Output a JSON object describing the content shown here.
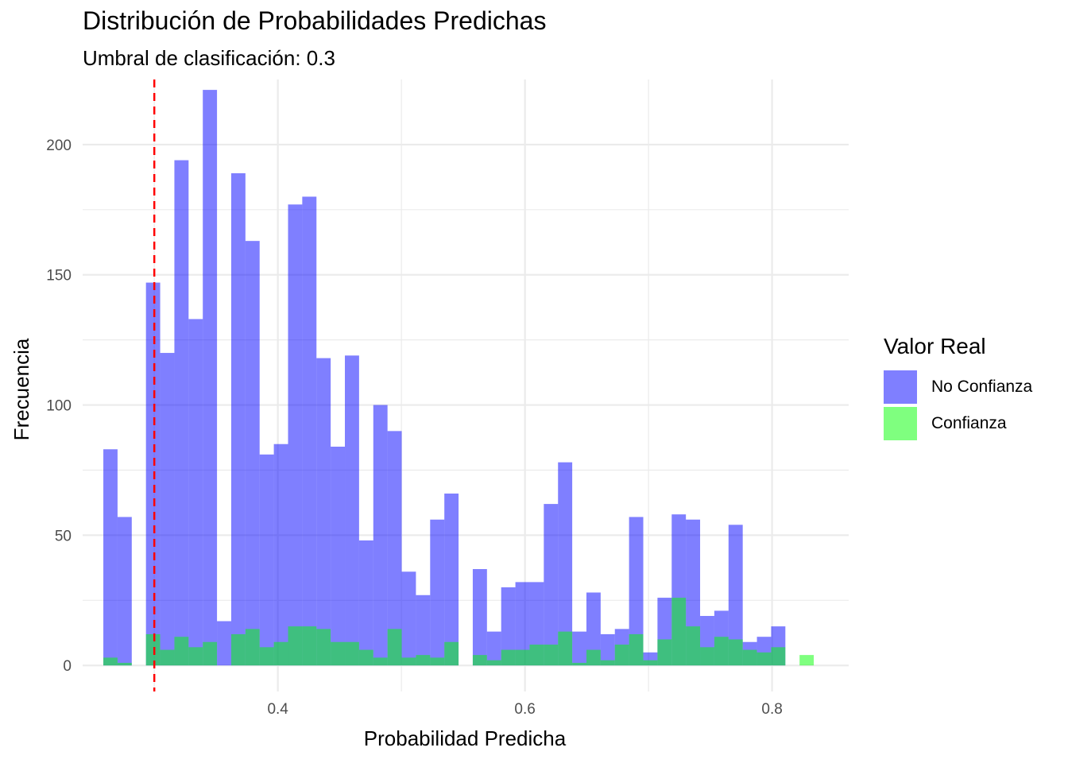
{
  "chart_data": {
    "type": "bar",
    "title": "Distribución de Probabilidades Predichas",
    "subtitle": "Umbral de clasificación: 0.3",
    "xlabel": "Probabilidad Predicha",
    "ylabel": "Frecuencia",
    "xlim": [
      0.242,
      0.862
    ],
    "ylim": [
      -10,
      225
    ],
    "x_ticks": [
      0.4,
      0.6,
      0.8
    ],
    "x_tick_labels": [
      "0.4",
      "0.6",
      "0.8"
    ],
    "y_ticks": [
      0,
      50,
      100,
      150,
      200
    ],
    "y_tick_labels": [
      "0",
      "50",
      "100",
      "150",
      "200"
    ],
    "grid": true,
    "threshold": 0.3,
    "bin_width": 0.0115,
    "bin_centers": [
      0.2645,
      0.276,
      0.2875,
      0.299,
      0.3105,
      0.322,
      0.3335,
      0.345,
      0.3565,
      0.368,
      0.3795,
      0.391,
      0.4025,
      0.414,
      0.4255,
      0.437,
      0.4485,
      0.46,
      0.4715,
      0.483,
      0.4945,
      0.506,
      0.5175,
      0.529,
      0.5405,
      0.552,
      0.5635,
      0.575,
      0.5865,
      0.598,
      0.6095,
      0.621,
      0.6325,
      0.644,
      0.6555,
      0.667,
      0.6785,
      0.69,
      0.7015,
      0.713,
      0.7245,
      0.736,
      0.7475,
      0.759,
      0.7705,
      0.782,
      0.7935,
      0.805,
      0.8165,
      0.828
    ],
    "legend": {
      "title": "Valor Real",
      "position": "right"
    },
    "series": [
      {
        "name": "No Confianza",
        "color": "#0000ff",
        "values": [
          83,
          57,
          0,
          147,
          120,
          194,
          133,
          221,
          17,
          189,
          163,
          81,
          85,
          177,
          180,
          118,
          84,
          119,
          48,
          100,
          90,
          36,
          27,
          56,
          66,
          0,
          37,
          13,
          30,
          32,
          32,
          62,
          78,
          13,
          28,
          12,
          14,
          57,
          5,
          26,
          58,
          56,
          19,
          21,
          54,
          9,
          11,
          15,
          0,
          0
        ]
      },
      {
        "name": "Confianza",
        "color": "#00ff00",
        "values": [
          3,
          1,
          0,
          12,
          6,
          11,
          7,
          9,
          0,
          12,
          14,
          7,
          9,
          15,
          15,
          14,
          9,
          9,
          6,
          3,
          14,
          3,
          4,
          3,
          9,
          0,
          4,
          2,
          6,
          6,
          8,
          8,
          13,
          1,
          6,
          2,
          8,
          12,
          2,
          10,
          26,
          15,
          7,
          11,
          10,
          6,
          5,
          7,
          0,
          4
        ]
      }
    ]
  }
}
